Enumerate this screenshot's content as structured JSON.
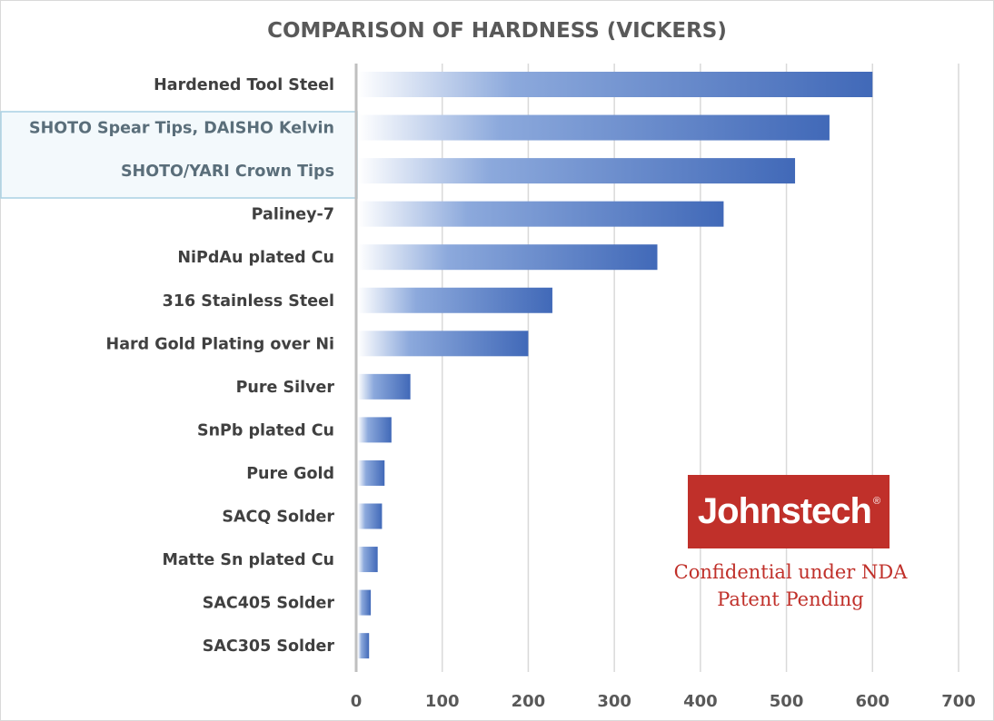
{
  "chart_data": {
    "type": "bar",
    "orientation": "horizontal",
    "title": "COMPARISON OF HARDNESS (VICKERS)",
    "categories": [
      "Hardened Tool Steel",
      "SHOTO Spear Tips, DAISHO Kelvin",
      "SHOTO/YARI Crown Tips",
      "Paliney-7",
      "NiPdAu plated Cu",
      "316 Stainless Steel",
      "Hard Gold Plating over Ni",
      "Pure Silver",
      "SnPb plated Cu",
      "Pure Gold",
      "SACQ Solder",
      "Matte Sn plated Cu",
      "SAC405 Solder",
      "SAC305 Solder"
    ],
    "values": [
      600,
      550,
      510,
      427,
      350,
      228,
      200,
      63,
      41,
      33,
      30,
      25,
      17,
      15
    ],
    "highlighted_categories": [
      "SHOTO Spear Tips, DAISHO Kelvin",
      "SHOTO/YARI Crown Tips"
    ],
    "xlim": [
      0,
      700
    ],
    "xticks": [
      0,
      100,
      200,
      300,
      400,
      500,
      600,
      700
    ],
    "grid": true,
    "bar_color": "#4472c4",
    "bar_fill": "gradient white to blue"
  },
  "logo": {
    "text": "Johnstech",
    "mark": "®",
    "color": "#c0302a"
  },
  "notice": {
    "line1": "Confidential under NDA",
    "line2": "Patent Pending"
  }
}
